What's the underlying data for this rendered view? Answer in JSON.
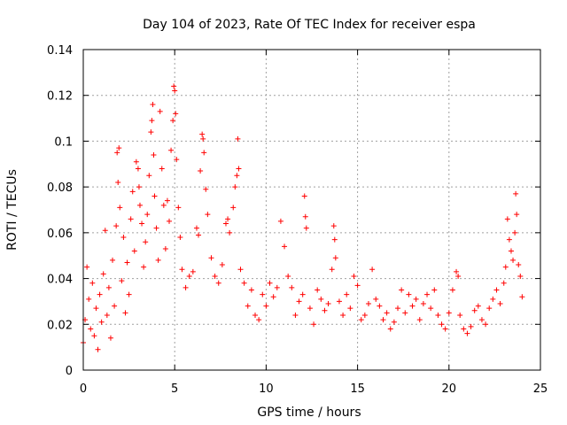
{
  "chart_data": {
    "type": "scatter",
    "title": "Day 104 of 2023, Rate Of TEC Index for receiver espa",
    "xlabel": "GPS time / hours",
    "ylabel": "ROTI / TECUs",
    "xlim": [
      0,
      25
    ],
    "ylim": [
      0,
      0.14
    ],
    "xticks": [
      0,
      5,
      10,
      15,
      20,
      25
    ],
    "xtick_labels": [
      "0",
      "5",
      "10",
      "15",
      "20",
      "25"
    ],
    "yticks": [
      0,
      0.02,
      0.04,
      0.06,
      0.08,
      0.1,
      0.12,
      0.14
    ],
    "ytick_labels": [
      "0",
      "0.02",
      "0.04",
      "0.06",
      "0.08",
      "0.1",
      "0.12",
      "0.14"
    ],
    "grid": true,
    "marker": "plus",
    "color": "#ff0000",
    "series": [
      {
        "name": "ROTI",
        "points": [
          [
            0.0,
            0.012
          ],
          [
            0.1,
            0.022
          ],
          [
            0.2,
            0.045
          ],
          [
            0.3,
            0.031
          ],
          [
            0.4,
            0.018
          ],
          [
            0.5,
            0.038
          ],
          [
            0.6,
            0.015
          ],
          [
            0.7,
            0.027
          ],
          [
            0.8,
            0.009
          ],
          [
            0.9,
            0.033
          ],
          [
            1.0,
            0.021
          ],
          [
            1.1,
            0.042
          ],
          [
            1.2,
            0.061
          ],
          [
            1.3,
            0.024
          ],
          [
            1.4,
            0.036
          ],
          [
            1.5,
            0.014
          ],
          [
            1.6,
            0.048
          ],
          [
            1.7,
            0.028
          ],
          [
            1.8,
            0.063
          ],
          [
            1.85,
            0.095
          ],
          [
            1.9,
            0.082
          ],
          [
            1.95,
            0.097
          ],
          [
            2.0,
            0.071
          ],
          [
            2.1,
            0.039
          ],
          [
            2.2,
            0.058
          ],
          [
            2.3,
            0.025
          ],
          [
            2.4,
            0.047
          ],
          [
            2.5,
            0.033
          ],
          [
            2.6,
            0.066
          ],
          [
            2.7,
            0.078
          ],
          [
            2.8,
            0.052
          ],
          [
            2.9,
            0.091
          ],
          [
            3.0,
            0.088
          ],
          [
            3.05,
            0.08
          ],
          [
            3.1,
            0.072
          ],
          [
            3.2,
            0.064
          ],
          [
            3.3,
            0.045
          ],
          [
            3.4,
            0.056
          ],
          [
            3.5,
            0.068
          ],
          [
            3.6,
            0.085
          ],
          [
            3.7,
            0.104
          ],
          [
            3.75,
            0.109
          ],
          [
            3.8,
            0.116
          ],
          [
            3.85,
            0.094
          ],
          [
            3.9,
            0.076
          ],
          [
            4.0,
            0.062
          ],
          [
            4.1,
            0.048
          ],
          [
            4.2,
            0.113
          ],
          [
            4.3,
            0.088
          ],
          [
            4.4,
            0.072
          ],
          [
            4.5,
            0.053
          ],
          [
            4.6,
            0.074
          ],
          [
            4.7,
            0.065
          ],
          [
            4.8,
            0.096
          ],
          [
            4.9,
            0.109
          ],
          [
            4.95,
            0.124
          ],
          [
            5.0,
            0.122
          ],
          [
            5.05,
            0.112
          ],
          [
            5.1,
            0.092
          ],
          [
            5.2,
            0.071
          ],
          [
            5.3,
            0.058
          ],
          [
            5.4,
            0.044
          ],
          [
            5.6,
            0.036
          ],
          [
            5.8,
            0.041
          ],
          [
            6.0,
            0.043
          ],
          [
            6.2,
            0.062
          ],
          [
            6.3,
            0.059
          ],
          [
            6.4,
            0.087
          ],
          [
            6.5,
            0.103
          ],
          [
            6.55,
            0.101
          ],
          [
            6.6,
            0.095
          ],
          [
            6.7,
            0.079
          ],
          [
            6.8,
            0.068
          ],
          [
            7.0,
            0.049
          ],
          [
            7.2,
            0.041
          ],
          [
            7.4,
            0.038
          ],
          [
            7.6,
            0.046
          ],
          [
            7.8,
            0.064
          ],
          [
            7.9,
            0.066
          ],
          [
            8.0,
            0.06
          ],
          [
            8.2,
            0.071
          ],
          [
            8.3,
            0.08
          ],
          [
            8.4,
            0.085
          ],
          [
            8.45,
            0.101
          ],
          [
            8.5,
            0.088
          ],
          [
            8.6,
            0.044
          ],
          [
            8.8,
            0.038
          ],
          [
            9.0,
            0.028
          ],
          [
            9.2,
            0.035
          ],
          [
            9.4,
            0.024
          ],
          [
            9.6,
            0.022
          ],
          [
            9.8,
            0.033
          ],
          [
            10.0,
            0.028
          ],
          [
            10.2,
            0.038
          ],
          [
            10.4,
            0.032
          ],
          [
            10.6,
            0.036
          ],
          [
            10.8,
            0.065
          ],
          [
            11.0,
            0.054
          ],
          [
            11.2,
            0.041
          ],
          [
            11.4,
            0.036
          ],
          [
            11.6,
            0.024
          ],
          [
            11.8,
            0.03
          ],
          [
            12.0,
            0.033
          ],
          [
            12.1,
            0.076
          ],
          [
            12.15,
            0.067
          ],
          [
            12.2,
            0.062
          ],
          [
            12.4,
            0.027
          ],
          [
            12.6,
            0.02
          ],
          [
            12.8,
            0.035
          ],
          [
            13.0,
            0.031
          ],
          [
            13.2,
            0.026
          ],
          [
            13.4,
            0.029
          ],
          [
            13.6,
            0.044
          ],
          [
            13.7,
            0.063
          ],
          [
            13.75,
            0.057
          ],
          [
            13.8,
            0.049
          ],
          [
            14.0,
            0.03
          ],
          [
            14.2,
            0.024
          ],
          [
            14.4,
            0.033
          ],
          [
            14.6,
            0.027
          ],
          [
            14.8,
            0.041
          ],
          [
            15.0,
            0.037
          ],
          [
            15.2,
            0.022
          ],
          [
            15.4,
            0.024
          ],
          [
            15.6,
            0.029
          ],
          [
            15.8,
            0.044
          ],
          [
            16.0,
            0.031
          ],
          [
            16.2,
            0.028
          ],
          [
            16.4,
            0.022
          ],
          [
            16.6,
            0.025
          ],
          [
            16.8,
            0.018
          ],
          [
            17.0,
            0.021
          ],
          [
            17.2,
            0.027
          ],
          [
            17.4,
            0.035
          ],
          [
            17.6,
            0.025
          ],
          [
            17.8,
            0.033
          ],
          [
            18.0,
            0.028
          ],
          [
            18.2,
            0.031
          ],
          [
            18.4,
            0.022
          ],
          [
            18.6,
            0.029
          ],
          [
            18.8,
            0.033
          ],
          [
            19.0,
            0.027
          ],
          [
            19.2,
            0.035
          ],
          [
            19.4,
            0.024
          ],
          [
            19.6,
            0.02
          ],
          [
            19.8,
            0.018
          ],
          [
            20.0,
            0.025
          ],
          [
            20.2,
            0.035
          ],
          [
            20.4,
            0.043
          ],
          [
            20.5,
            0.041
          ],
          [
            20.6,
            0.024
          ],
          [
            20.8,
            0.018
          ],
          [
            21.0,
            0.016
          ],
          [
            21.2,
            0.019
          ],
          [
            21.4,
            0.026
          ],
          [
            21.6,
            0.028
          ],
          [
            21.8,
            0.022
          ],
          [
            22.0,
            0.02
          ],
          [
            22.2,
            0.027
          ],
          [
            22.4,
            0.031
          ],
          [
            22.6,
            0.035
          ],
          [
            22.8,
            0.029
          ],
          [
            23.0,
            0.038
          ],
          [
            23.1,
            0.045
          ],
          [
            23.2,
            0.066
          ],
          [
            23.3,
            0.057
          ],
          [
            23.4,
            0.052
          ],
          [
            23.5,
            0.048
          ],
          [
            23.6,
            0.06
          ],
          [
            23.65,
            0.077
          ],
          [
            23.7,
            0.068
          ],
          [
            23.8,
            0.046
          ],
          [
            23.9,
            0.041
          ],
          [
            24.0,
            0.032
          ]
        ]
      }
    ]
  }
}
